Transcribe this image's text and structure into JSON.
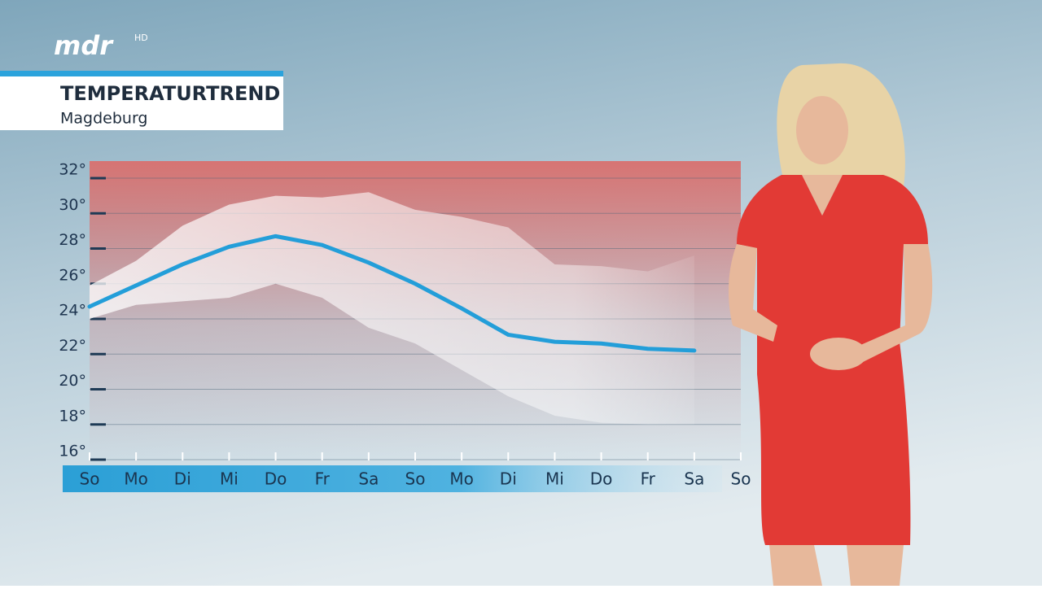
{
  "header": {
    "logo": "mdr",
    "logo_badge": "HD"
  },
  "chart_data": {
    "type": "line",
    "title": "TEMPERATURTREND",
    "subtitle": "Magdeburg",
    "categories": [
      "So",
      "Mo",
      "Di",
      "Mi",
      "Do",
      "Fr",
      "Sa",
      "So",
      "Mo",
      "Di",
      "Mi",
      "Do",
      "Fr",
      "Sa",
      "So"
    ],
    "values": [
      24.7,
      25.9,
      27.1,
      28.1,
      28.7,
      28.2,
      27.2,
      26.0,
      24.6,
      23.1,
      22.7,
      22.6,
      22.3,
      22.2,
      null
    ],
    "color": "#239ed9",
    "band_upper": [
      25.9,
      27.3,
      29.3,
      30.5,
      31.0,
      30.9,
      31.2,
      30.2,
      29.8,
      29.2,
      27.1,
      27.0,
      26.7,
      27.6,
      null
    ],
    "band_lower": [
      24.0,
      24.8,
      25.0,
      25.2,
      26.0,
      25.2,
      23.5,
      22.6,
      21.1,
      19.6,
      18.5,
      18.1,
      18.0,
      18.0,
      null
    ],
    "band_color": "#ffffff",
    "background_color": "#d9706e",
    "ylim": [
      16,
      32
    ],
    "yticks": [
      {
        "value": 16,
        "label": "16°"
      },
      {
        "value": 18,
        "label": "18°"
      },
      {
        "value": 20,
        "label": "20°"
      },
      {
        "value": 22,
        "label": "22°"
      },
      {
        "value": 24,
        "label": "24°"
      },
      {
        "value": 26,
        "label": "26°"
      },
      {
        "value": 28,
        "label": "28°"
      },
      {
        "value": 30,
        "label": "30°"
      },
      {
        "value": 32,
        "label": "32°"
      }
    ],
    "grid": true
  }
}
